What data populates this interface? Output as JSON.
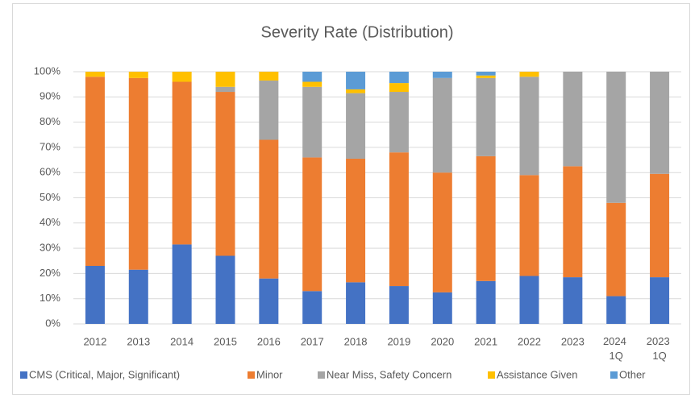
{
  "chart_data": {
    "type": "stacked_bar",
    "title": "Severity Rate (Distribution)",
    "categories": [
      "2012",
      "2013",
      "2014",
      "2015",
      "2016",
      "2017",
      "2018",
      "2019",
      "2020",
      "2021",
      "2022",
      "2023",
      "2024 1Q",
      "2023 1Q"
    ],
    "series": [
      {
        "name": "CMS (Critical, Major, Significant)",
        "color": "#4472c4",
        "values": [
          23,
          21.5,
          31.5,
          27,
          18,
          13,
          16.5,
          15,
          12.5,
          17,
          19,
          18.5,
          11,
          18.5
        ]
      },
      {
        "name": "Minor",
        "color": "#ed7d31",
        "values": [
          75,
          76,
          64.5,
          65,
          55,
          53,
          49,
          53,
          47.5,
          49.5,
          40,
          44,
          37,
          41
        ]
      },
      {
        "name": "Near Miss, Safety Concern",
        "color": "#a5a5a5",
        "values": [
          0,
          0,
          0,
          2,
          23.5,
          28,
          26,
          24,
          37.5,
          31,
          39,
          37.5,
          52,
          40.5
        ]
      },
      {
        "name": "Assistance Given",
        "color": "#ffc000",
        "values": [
          2,
          2.5,
          4,
          6,
          3.5,
          2,
          1.5,
          3.5,
          0,
          1,
          2,
          0,
          0,
          0
        ]
      },
      {
        "name": "Other",
        "color": "#5b9bd5",
        "values": [
          0,
          0,
          0,
          0,
          0,
          4,
          7,
          4.5,
          2.5,
          1.5,
          0,
          0,
          0,
          0
        ]
      }
    ],
    "ylim": [
      0,
      100
    ],
    "yticks": [
      {
        "value": 0,
        "label": "0%"
      },
      {
        "value": 10,
        "label": "10%"
      },
      {
        "value": 20,
        "label": "20%"
      },
      {
        "value": 30,
        "label": "30%"
      },
      {
        "value": 40,
        "label": "40%"
      },
      {
        "value": 50,
        "label": "50%"
      },
      {
        "value": 60,
        "label": "60%"
      },
      {
        "value": 70,
        "label": "70%"
      },
      {
        "value": 80,
        "label": "80%"
      },
      {
        "value": 90,
        "label": "90%"
      },
      {
        "value": 100,
        "label": "100%"
      }
    ],
    "grid": true,
    "legend": "bottom"
  }
}
